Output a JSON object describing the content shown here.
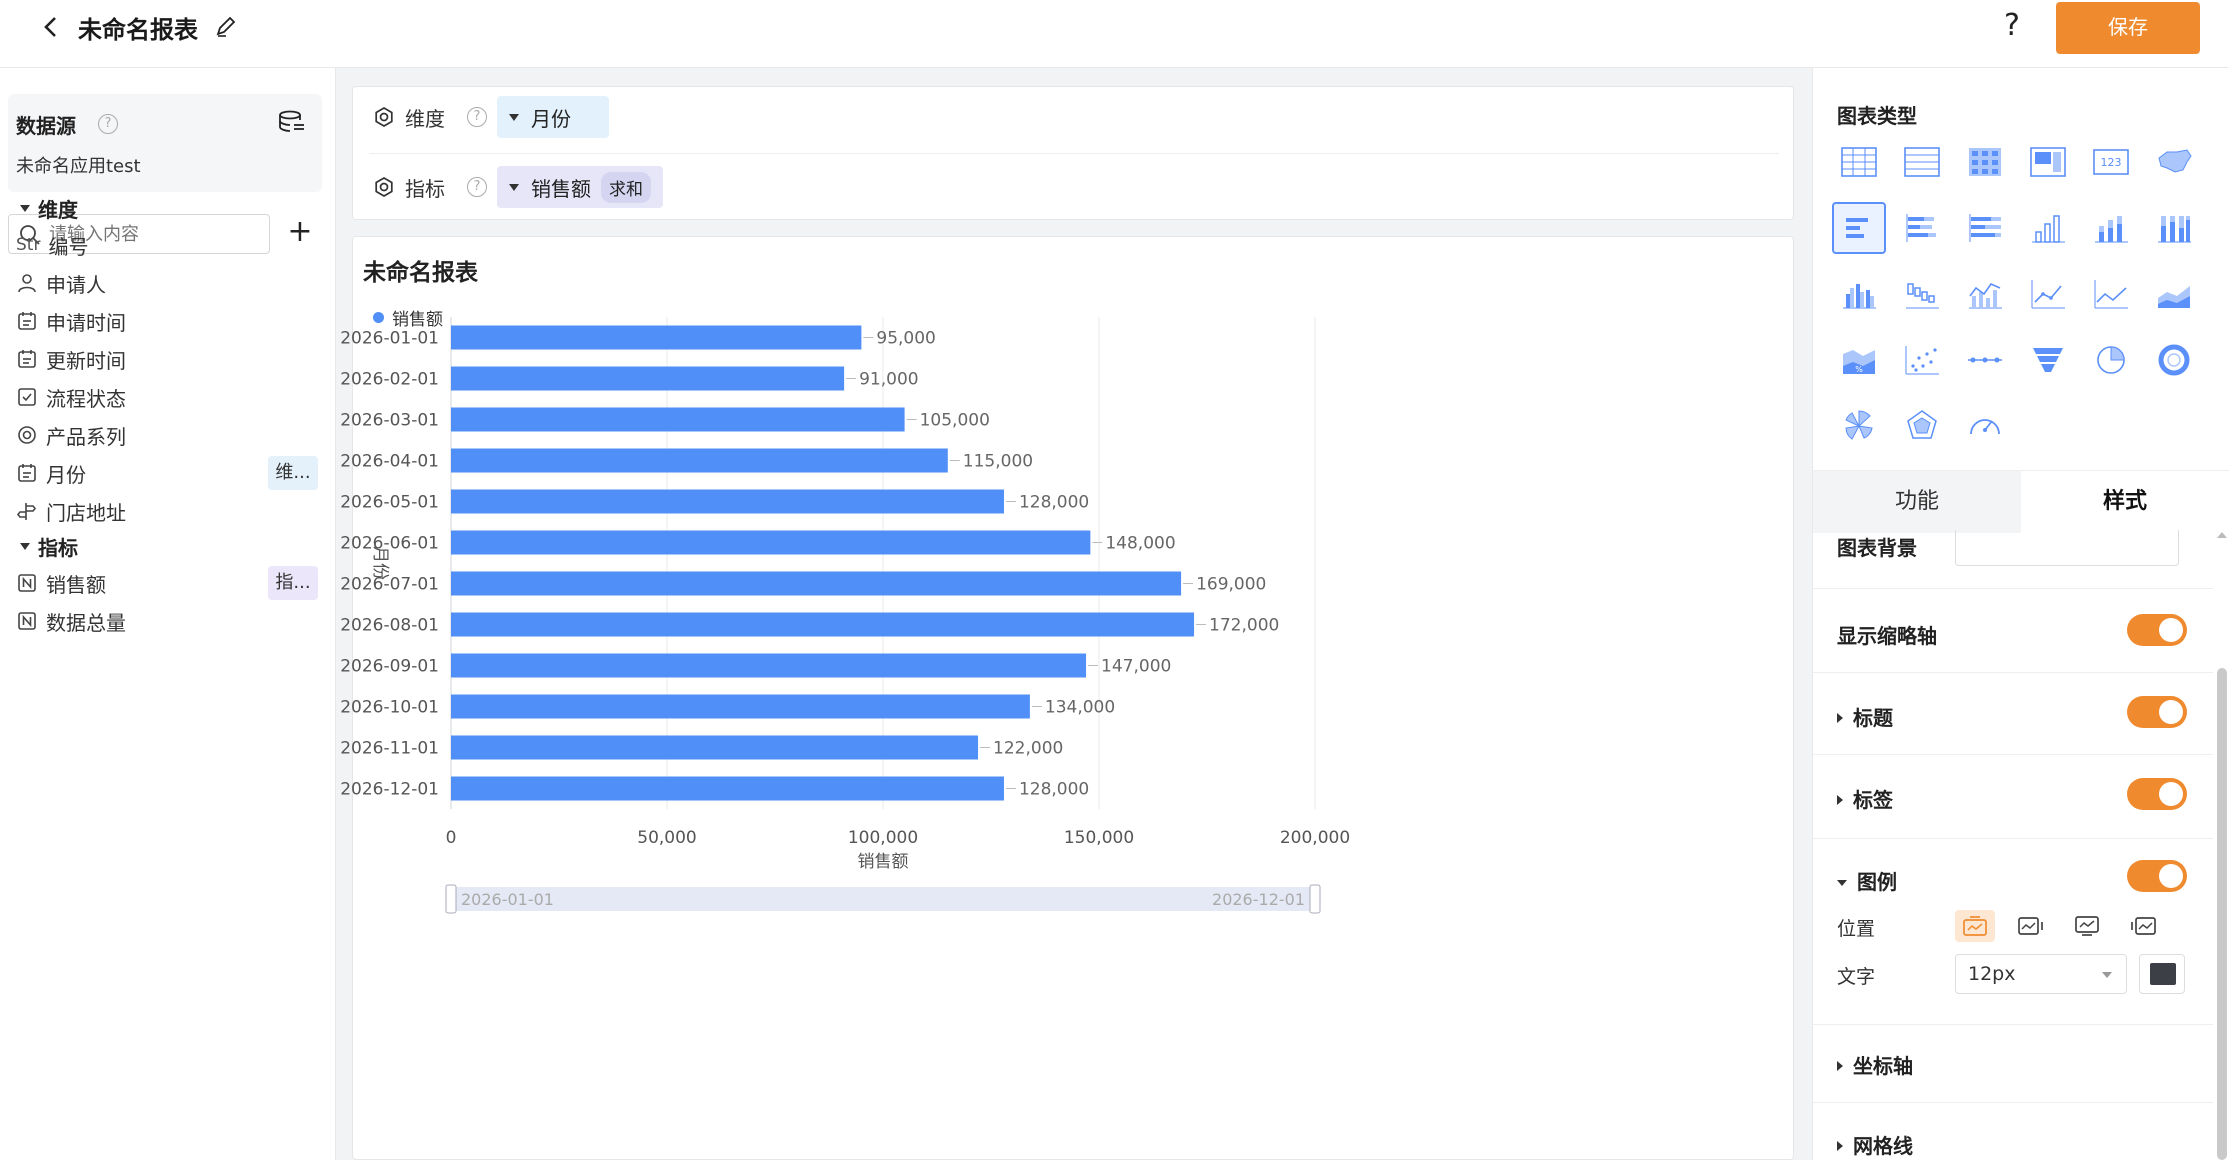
{
  "header": {
    "title": "未命名报表",
    "help": "?",
    "save_label": "保存"
  },
  "sidebar": {
    "datasource_title": "数据源",
    "datasource_help": "?",
    "datasource_name": "未命名应用test",
    "search_placeholder": "请输入内容",
    "add": "+",
    "dimension_section": "维度",
    "metric_section": "指标",
    "str_prefix": "Str",
    "fields": [
      {
        "label": "编号"
      },
      {
        "label": "申请人"
      },
      {
        "label": "申请时间"
      },
      {
        "label": "更新时间"
      },
      {
        "label": "流程状态"
      },
      {
        "label": "产品系列"
      },
      {
        "label": "月份",
        "tag": "维..."
      },
      {
        "label": "门店地址"
      }
    ],
    "metrics": [
      {
        "label": "销售额",
        "tag": "指..."
      },
      {
        "label": "数据总量"
      }
    ]
  },
  "config": {
    "dimension_label": "维度",
    "dimension_value": "月份",
    "metric_label": "指标",
    "metric_value": "销售额",
    "metric_agg": "求和",
    "help": "?"
  },
  "chart_data": {
    "type": "bar",
    "orientation": "horizontal",
    "title": "未命名报表",
    "xlabel": "销售额",
    "ylabel": "月份",
    "categories": [
      "2026-01-01",
      "2026-02-01",
      "2026-03-01",
      "2026-04-01",
      "2026-05-01",
      "2026-06-01",
      "2026-07-01",
      "2026-08-01",
      "2026-09-01",
      "2026-10-01",
      "2026-11-01",
      "2026-12-01"
    ],
    "series": [
      {
        "name": "销售额",
        "color": "#4f8ff7",
        "values": [
          95000,
          91000,
          105000,
          115000,
          128000,
          148000,
          169000,
          172000,
          147000,
          134000,
          122000,
          128000
        ]
      }
    ],
    "xlim": [
      0,
      200000
    ],
    "xticks": [
      0,
      50000,
      100000,
      150000,
      200000
    ],
    "xtick_labels": [
      "0",
      "50,000",
      "100,000",
      "150,000",
      "200,000"
    ],
    "data_labels": [
      "95,000",
      "91,000",
      "105,000",
      "115,000",
      "128,000",
      "148,000",
      "169,000",
      "172,000",
      "147,000",
      "134,000",
      "122,000",
      "128,000"
    ],
    "legend_position": "top-left",
    "grid": true,
    "zoom_start": "2026-01-01",
    "zoom_end": "2026-12-01"
  },
  "right_panel": {
    "chart_type_title": "图表类型",
    "tab_function": "功能",
    "tab_style": "样式",
    "chart_bg": "图表背景",
    "show_zoom_axis": "显示缩略轴",
    "title_setting": "标题",
    "label_setting": "标签",
    "legend_setting": "图例",
    "position_label": "位置",
    "text_label": "文字",
    "font_size": "12px",
    "axis_setting": "坐标轴",
    "grid_setting": "网格线",
    "accent": "#ef8a2f",
    "text_color": "#3c4046"
  }
}
